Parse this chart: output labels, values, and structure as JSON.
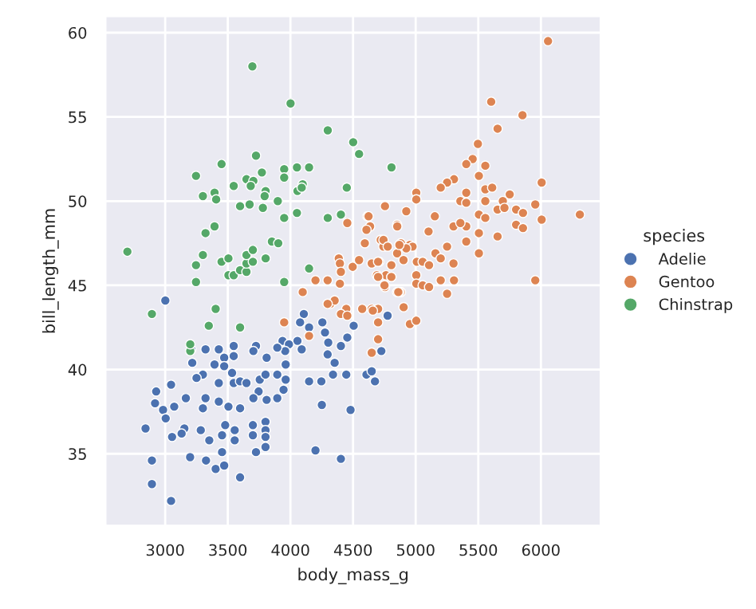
{
  "chart_data": {
    "type": "scatter",
    "xlabel": "body_mass_g",
    "ylabel": "bill_length_mm",
    "legend_title": "species",
    "legend": "right",
    "grid": true,
    "marker": "circle",
    "xlim": [
      2520,
      6480
    ],
    "ylim": [
      30.7,
      61.0
    ],
    "xticks": [
      3000,
      3500,
      4000,
      4500,
      5000,
      5500,
      6000
    ],
    "yticks": [
      35,
      40,
      45,
      50,
      55,
      60
    ],
    "series": [
      {
        "name": "Adelie",
        "color": "#4c72b0",
        "x": [
          3001,
          4107,
          4077,
          4149,
          4255,
          4276,
          4056,
          3937,
          3988,
          4090,
          3958,
          3895,
          3962,
          3725,
          3704,
          3810,
          3547,
          3547,
          3471,
          3428,
          3322,
          3208,
          3216,
          3394,
          3471,
          3534,
          3301,
          3250,
          3428,
          3547,
          3598,
          3649,
          3755,
          3801,
          3895,
          3746,
          3810,
          3895,
          3945,
          3962,
          3704,
          3598,
          3505,
          3428,
          3322,
          3301,
          3165,
          3072,
          2928,
          2919,
          2983,
          3004,
          3047,
          2843,
          3153,
          3055,
          3131,
          3284,
          3352,
          3454,
          3555,
          3479,
          3555,
          3700,
          3700,
          3801,
          3801,
          3801,
          3725,
          3801,
          3454,
          3199,
          3326,
          3403,
          3471,
          2894,
          2894,
          3047,
          3598,
          4200,
          4403,
          4251,
          4480,
          4149,
          4247,
          4340,
          4353,
          4297,
          4302,
          4454,
          4403,
          4505,
          4607,
          4649,
          4675,
          4726,
          4776,
          4446
        ],
        "values": [
          44.1,
          43.3,
          42.8,
          42.5,
          42.8,
          42.2,
          41.7,
          41.7,
          41.5,
          41.2,
          41.1,
          41.3,
          40.3,
          41.4,
          41.1,
          40.7,
          41.4,
          40.8,
          40.7,
          41.2,
          41.2,
          41.2,
          40.4,
          40.3,
          40.2,
          39.8,
          39.7,
          39.5,
          39.2,
          39.2,
          39.3,
          39.2,
          39.4,
          39.7,
          39.7,
          38.7,
          38.2,
          38.3,
          38.8,
          39.4,
          38.3,
          37.7,
          37.8,
          38.1,
          38.3,
          37.7,
          38.3,
          37.8,
          38.7,
          38.0,
          37.6,
          37.1,
          39.1,
          36.5,
          36.5,
          36.0,
          36.2,
          36.4,
          35.8,
          36.1,
          36.4,
          36.7,
          35.8,
          36.7,
          36.1,
          36.9,
          36.4,
          36.0,
          35.1,
          35.4,
          35.1,
          34.8,
          34.6,
          34.1,
          34.3,
          34.6,
          33.2,
          32.2,
          33.6,
          35.2,
          34.7,
          37.9,
          37.6,
          39.3,
          39.3,
          39.7,
          40.4,
          40.9,
          41.6,
          41.9,
          41.4,
          42.6,
          39.7,
          39.9,
          39.3,
          41.1,
          43.2,
          39.7
        ]
      },
      {
        "name": "Gentoo",
        "color": "#dd8452",
        "x": [
          5603,
          5853,
          5654,
          5497,
          5455,
          5404,
          5556,
          5505,
          5306,
          5251,
          5200,
          5404,
          5556,
          5611,
          5751,
          6006,
          5005,
          5005,
          5357,
          5404,
          5556,
          5696,
          5955,
          4755,
          4925,
          5153,
          5505,
          5556,
          5654,
          5709,
          5802,
          5857,
          6006,
          6311,
          5802,
          5857,
          5302,
          5404,
          5357,
          5505,
          4852,
          5103,
          5654,
          4615,
          4636,
          4721,
          4742,
          4882,
          4954,
          4975,
          4925,
          4852,
          4903,
          5009,
          5056,
          5107,
          5158,
          5200,
          5251,
          5302,
          5404,
          5505,
          4708,
          4806,
          4649,
          4763,
          4806,
          4691,
          5005,
          5005,
          5056,
          5107,
          5200,
          5306,
          5955,
          4755,
          4852,
          4882,
          5251,
          4649,
          4700,
          6057,
          4454,
          4624,
          4607,
          4594,
          4743,
          4853,
          4777,
          4870,
          4386,
          4395,
          4497,
          4548,
          4700,
          4806,
          4700,
          4403,
          4297,
          4200,
          4395,
          4098,
          4319,
          4353,
          4446,
          4573,
          4658,
          4870,
          4904,
          3950,
          4149,
          4297,
          4403,
          4454,
          4700,
          4700,
          4649,
          4954,
          5005,
          4861,
          4751
        ],
        "values": [
          55.9,
          55.1,
          54.3,
          53.4,
          52.5,
          52.2,
          52.1,
          51.5,
          51.3,
          51.1,
          50.8,
          50.5,
          50.7,
          50.8,
          50.4,
          51.1,
          50.5,
          50.1,
          50.0,
          49.9,
          50.0,
          50.0,
          49.8,
          49.7,
          49.4,
          49.1,
          49.2,
          49.0,
          49.5,
          49.6,
          49.5,
          49.3,
          48.9,
          49.2,
          48.6,
          48.4,
          48.5,
          48.5,
          48.7,
          48.1,
          48.6,
          48.2,
          47.9,
          49.1,
          48.5,
          47.7,
          47.3,
          47.5,
          47.4,
          47.3,
          47.2,
          46.9,
          46.5,
          46.4,
          46.4,
          46.2,
          46.9,
          46.6,
          47.3,
          46.3,
          47.6,
          46.9,
          46.4,
          46.2,
          46.3,
          45.6,
          45.5,
          45.6,
          45.6,
          45.1,
          45.0,
          44.9,
          45.3,
          45.3,
          45.3,
          44.9,
          44.6,
          44.6,
          44.5,
          43.6,
          43.6,
          59.5,
          48.7,
          49.1,
          48.3,
          47.5,
          47.7,
          48.5,
          47.3,
          47.4,
          46.6,
          46.3,
          46.1,
          46.5,
          46.4,
          45.5,
          45.5,
          45.8,
          45.3,
          45.3,
          45.1,
          44.6,
          43.9,
          44.1,
          43.6,
          43.6,
          43.5,
          44.6,
          43.7,
          42.8,
          42.0,
          43.9,
          43.3,
          43.2,
          42.8,
          41.8,
          41.0,
          42.7,
          42.9,
          44.6,
          45.0
        ]
      },
      {
        "name": "Chinstrap",
        "color": "#55a868",
        "x": [
          3696,
          4001,
          4298,
          4501,
          4548,
          4807,
          2698,
          3246,
          3450,
          3725,
          3301,
          3394,
          3407,
          3547,
          3649,
          3704,
          3772,
          3683,
          3950,
          3950,
          4052,
          4149,
          4098,
          4056,
          4090,
          3802,
          3794,
          3780,
          3899,
          3598,
          3674,
          3950,
          4052,
          4298,
          4403,
          4450,
          3322,
          3394,
          3852,
          3903,
          3301,
          3246,
          3246,
          3450,
          3505,
          3505,
          3547,
          3598,
          3649,
          3649,
          3700,
          3649,
          3700,
          3802,
          3950,
          4149,
          2894,
          3403,
          3348,
          3598,
          3200,
          3200
        ],
        "values": [
          58.0,
          55.8,
          54.2,
          53.5,
          52.8,
          52.0,
          47.0,
          51.5,
          52.2,
          52.7,
          50.3,
          50.5,
          50.1,
          50.9,
          51.3,
          51.2,
          51.7,
          50.9,
          51.9,
          51.4,
          52.0,
          52.0,
          51.0,
          50.6,
          50.8,
          50.6,
          50.3,
          49.6,
          50.0,
          49.7,
          49.8,
          49.0,
          49.3,
          49.0,
          49.2,
          50.8,
          48.1,
          48.5,
          47.6,
          47.5,
          46.8,
          46.2,
          45.2,
          46.4,
          46.6,
          45.6,
          45.6,
          45.9,
          45.8,
          46.3,
          46.4,
          46.8,
          47.1,
          46.6,
          45.2,
          46.0,
          43.3,
          43.6,
          42.6,
          42.5,
          41.1,
          41.5
        ]
      }
    ]
  }
}
